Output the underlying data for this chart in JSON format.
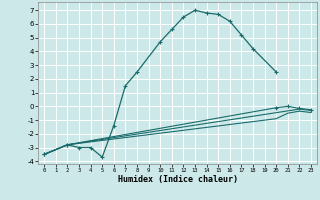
{
  "xlabel": "Humidex (Indice chaleur)",
  "bg_color": "#cde8e8",
  "grid_color": "#ffffff",
  "line_color": "#1a6b6b",
  "xlim": [
    -0.5,
    23.5
  ],
  "ylim": [
    -4.2,
    7.6
  ],
  "yticks": [
    -4,
    -3,
    -2,
    -1,
    0,
    1,
    2,
    3,
    4,
    5,
    6,
    7
  ],
  "xticks": [
    0,
    1,
    2,
    3,
    4,
    5,
    6,
    7,
    8,
    9,
    10,
    11,
    12,
    13,
    14,
    15,
    16,
    17,
    18,
    19,
    20,
    21,
    22,
    23
  ],
  "line1": {
    "x": [
      0,
      2,
      3,
      4,
      5,
      6,
      7,
      8,
      10,
      11,
      12,
      13,
      14,
      15,
      16,
      17,
      18,
      20
    ],
    "y": [
      -3.5,
      -2.8,
      -3.0,
      -3.0,
      -3.7,
      -1.4,
      1.5,
      2.5,
      4.7,
      5.6,
      6.5,
      7.0,
      6.8,
      6.7,
      6.2,
      5.2,
      4.2,
      2.5
    ]
  },
  "line2": {
    "x": [
      0,
      2,
      22,
      23
    ],
    "y": [
      -3.5,
      -2.8,
      -0.2,
      -0.3
    ]
  },
  "line3": {
    "x": [
      0,
      2,
      20,
      21,
      22,
      23
    ],
    "y": [
      -3.5,
      -2.8,
      -0.1,
      0.0,
      -0.15,
      -0.25
    ]
  },
  "line4": {
    "x": [
      0,
      2,
      20,
      21,
      22,
      23
    ],
    "y": [
      -3.5,
      -2.8,
      -0.9,
      -0.5,
      -0.35,
      -0.45
    ]
  }
}
